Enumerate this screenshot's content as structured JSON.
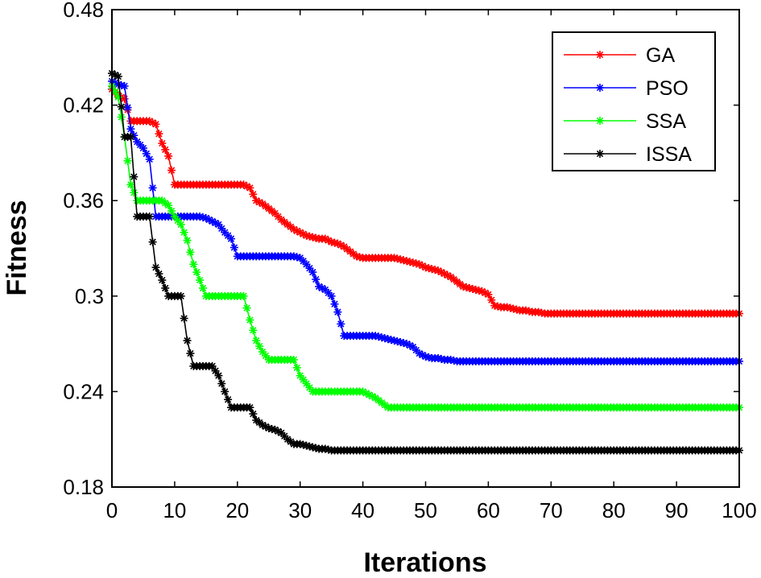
{
  "chart_data": {
    "type": "line",
    "title": "",
    "xlabel": "Iterations",
    "ylabel": "Fitness",
    "xlim": [
      0,
      100
    ],
    "ylim": [
      0.18,
      0.48
    ],
    "xticks": [
      0,
      10,
      20,
      30,
      40,
      50,
      60,
      70,
      80,
      90,
      100
    ],
    "yticks": [
      0.18,
      0.24,
      0.3,
      0.36,
      0.42,
      0.48
    ],
    "ytick_labels": [
      "0.18",
      "0.24",
      "0.3",
      "0.36",
      "0.42",
      "0.48"
    ],
    "grid": false,
    "legend_position": "top-right",
    "marker": "*",
    "series": [
      {
        "name": "GA",
        "color": "#ff0000",
        "points": [
          [
            0,
            0.43
          ],
          [
            1,
            0.426
          ],
          [
            2,
            0.424
          ],
          [
            3,
            0.41
          ],
          [
            4,
            0.41
          ],
          [
            5,
            0.41
          ],
          [
            6,
            0.41
          ],
          [
            7,
            0.408
          ],
          [
            8,
            0.396
          ],
          [
            9,
            0.388
          ],
          [
            10,
            0.37
          ],
          [
            11,
            0.37
          ],
          [
            12,
            0.37
          ],
          [
            13,
            0.37
          ],
          [
            14,
            0.37
          ],
          [
            15,
            0.37
          ],
          [
            16,
            0.37
          ],
          [
            17,
            0.37
          ],
          [
            18,
            0.37
          ],
          [
            19,
            0.37
          ],
          [
            20,
            0.37
          ],
          [
            21,
            0.37
          ],
          [
            22,
            0.368
          ],
          [
            23,
            0.36
          ],
          [
            24,
            0.358
          ],
          [
            25,
            0.355
          ],
          [
            26,
            0.352
          ],
          [
            27,
            0.348
          ],
          [
            28,
            0.345
          ],
          [
            29,
            0.342
          ],
          [
            30,
            0.34
          ],
          [
            31,
            0.338
          ],
          [
            32,
            0.337
          ],
          [
            33,
            0.336
          ],
          [
            34,
            0.336
          ],
          [
            35,
            0.334
          ],
          [
            36,
            0.333
          ],
          [
            37,
            0.331
          ],
          [
            38,
            0.328
          ],
          [
            39,
            0.325
          ],
          [
            40,
            0.324
          ],
          [
            41,
            0.324
          ],
          [
            42,
            0.324
          ],
          [
            43,
            0.324
          ],
          [
            44,
            0.324
          ],
          [
            45,
            0.324
          ],
          [
            46,
            0.323
          ],
          [
            47,
            0.322
          ],
          [
            48,
            0.321
          ],
          [
            49,
            0.32
          ],
          [
            50,
            0.318
          ],
          [
            51,
            0.317
          ],
          [
            52,
            0.316
          ],
          [
            53,
            0.314
          ],
          [
            54,
            0.312
          ],
          [
            55,
            0.309
          ],
          [
            56,
            0.306
          ],
          [
            57,
            0.305
          ],
          [
            58,
            0.304
          ],
          [
            59,
            0.303
          ],
          [
            60,
            0.301
          ],
          [
            61,
            0.294
          ],
          [
            62,
            0.293
          ],
          [
            63,
            0.293
          ],
          [
            64,
            0.292
          ],
          [
            65,
            0.291
          ],
          [
            66,
            0.291
          ],
          [
            67,
            0.29
          ],
          [
            68,
            0.29
          ],
          [
            69,
            0.289
          ],
          [
            70,
            0.289
          ],
          [
            75,
            0.289
          ],
          [
            80,
            0.289
          ],
          [
            85,
            0.289
          ],
          [
            90,
            0.289
          ],
          [
            95,
            0.289
          ],
          [
            100,
            0.289
          ]
        ]
      },
      {
        "name": "PSO",
        "color": "#0000ff",
        "points": [
          [
            0,
            0.435
          ],
          [
            1,
            0.433
          ],
          [
            2,
            0.432
          ],
          [
            3,
            0.405
          ],
          [
            4,
            0.397
          ],
          [
            5,
            0.393
          ],
          [
            6,
            0.386
          ],
          [
            7,
            0.35
          ],
          [
            8,
            0.35
          ],
          [
            9,
            0.35
          ],
          [
            10,
            0.35
          ],
          [
            11,
            0.35
          ],
          [
            12,
            0.35
          ],
          [
            13,
            0.35
          ],
          [
            14,
            0.35
          ],
          [
            15,
            0.349
          ],
          [
            16,
            0.347
          ],
          [
            17,
            0.345
          ],
          [
            18,
            0.34
          ],
          [
            19,
            0.336
          ],
          [
            20,
            0.325
          ],
          [
            21,
            0.325
          ],
          [
            22,
            0.325
          ],
          [
            23,
            0.325
          ],
          [
            24,
            0.325
          ],
          [
            25,
            0.325
          ],
          [
            26,
            0.325
          ],
          [
            27,
            0.325
          ],
          [
            28,
            0.325
          ],
          [
            29,
            0.325
          ],
          [
            30,
            0.324
          ],
          [
            31,
            0.32
          ],
          [
            32,
            0.315
          ],
          [
            33,
            0.306
          ],
          [
            34,
            0.304
          ],
          [
            35,
            0.3
          ],
          [
            36,
            0.29
          ],
          [
            37,
            0.275
          ],
          [
            38,
            0.275
          ],
          [
            39,
            0.275
          ],
          [
            40,
            0.275
          ],
          [
            41,
            0.275
          ],
          [
            42,
            0.275
          ],
          [
            43,
            0.274
          ],
          [
            44,
            0.273
          ],
          [
            45,
            0.272
          ],
          [
            46,
            0.271
          ],
          [
            47,
            0.27
          ],
          [
            48,
            0.268
          ],
          [
            49,
            0.264
          ],
          [
            50,
            0.262
          ],
          [
            51,
            0.261
          ],
          [
            52,
            0.261
          ],
          [
            53,
            0.26
          ],
          [
            54,
            0.26
          ],
          [
            55,
            0.259
          ],
          [
            60,
            0.259
          ],
          [
            65,
            0.259
          ],
          [
            70,
            0.259
          ],
          [
            75,
            0.259
          ],
          [
            80,
            0.259
          ],
          [
            85,
            0.259
          ],
          [
            90,
            0.259
          ],
          [
            95,
            0.259
          ],
          [
            100,
            0.259
          ]
        ]
      },
      {
        "name": "SSA",
        "color": "#00ff00",
        "points": [
          [
            0,
            0.432
          ],
          [
            1,
            0.425
          ],
          [
            2,
            0.4
          ],
          [
            3,
            0.37
          ],
          [
            4,
            0.36
          ],
          [
            5,
            0.36
          ],
          [
            6,
            0.36
          ],
          [
            7,
            0.36
          ],
          [
            8,
            0.36
          ],
          [
            9,
            0.357
          ],
          [
            10,
            0.35
          ],
          [
            11,
            0.345
          ],
          [
            12,
            0.335
          ],
          [
            13,
            0.32
          ],
          [
            14,
            0.31
          ],
          [
            15,
            0.3
          ],
          [
            16,
            0.3
          ],
          [
            17,
            0.3
          ],
          [
            18,
            0.3
          ],
          [
            19,
            0.3
          ],
          [
            20,
            0.3
          ],
          [
            21,
            0.3
          ],
          [
            22,
            0.285
          ],
          [
            23,
            0.272
          ],
          [
            24,
            0.265
          ],
          [
            25,
            0.26
          ],
          [
            26,
            0.26
          ],
          [
            27,
            0.26
          ],
          [
            28,
            0.26
          ],
          [
            29,
            0.26
          ],
          [
            30,
            0.25
          ],
          [
            31,
            0.245
          ],
          [
            32,
            0.24
          ],
          [
            33,
            0.24
          ],
          [
            34,
            0.24
          ],
          [
            35,
            0.24
          ],
          [
            36,
            0.24
          ],
          [
            37,
            0.24
          ],
          [
            38,
            0.24
          ],
          [
            39,
            0.24
          ],
          [
            40,
            0.24
          ],
          [
            41,
            0.238
          ],
          [
            42,
            0.236
          ],
          [
            43,
            0.233
          ],
          [
            44,
            0.23
          ],
          [
            45,
            0.23
          ],
          [
            50,
            0.23
          ],
          [
            55,
            0.23
          ],
          [
            60,
            0.23
          ],
          [
            65,
            0.23
          ],
          [
            70,
            0.23
          ],
          [
            75,
            0.23
          ],
          [
            80,
            0.23
          ],
          [
            85,
            0.23
          ],
          [
            90,
            0.23
          ],
          [
            95,
            0.23
          ],
          [
            100,
            0.23
          ]
        ]
      },
      {
        "name": "ISSA",
        "color": "#000000",
        "points": [
          [
            0,
            0.44
          ],
          [
            1,
            0.438
          ],
          [
            2,
            0.4
          ],
          [
            3,
            0.4
          ],
          [
            4,
            0.35
          ],
          [
            5,
            0.35
          ],
          [
            6,
            0.35
          ],
          [
            7,
            0.318
          ],
          [
            8,
            0.31
          ],
          [
            9,
            0.3
          ],
          [
            10,
            0.3
          ],
          [
            11,
            0.3
          ],
          [
            12,
            0.272
          ],
          [
            13,
            0.256
          ],
          [
            14,
            0.256
          ],
          [
            15,
            0.256
          ],
          [
            16,
            0.256
          ],
          [
            17,
            0.25
          ],
          [
            18,
            0.24
          ],
          [
            19,
            0.23
          ],
          [
            20,
            0.23
          ],
          [
            21,
            0.23
          ],
          [
            22,
            0.23
          ],
          [
            23,
            0.222
          ],
          [
            24,
            0.219
          ],
          [
            25,
            0.217
          ],
          [
            26,
            0.216
          ],
          [
            27,
            0.214
          ],
          [
            28,
            0.21
          ],
          [
            29,
            0.207
          ],
          [
            30,
            0.207
          ],
          [
            31,
            0.206
          ],
          [
            32,
            0.205
          ],
          [
            33,
            0.204
          ],
          [
            34,
            0.204
          ],
          [
            35,
            0.203
          ],
          [
            36,
            0.203
          ],
          [
            40,
            0.203
          ],
          [
            45,
            0.203
          ],
          [
            50,
            0.203
          ],
          [
            55,
            0.203
          ],
          [
            60,
            0.203
          ],
          [
            65,
            0.203
          ],
          [
            70,
            0.203
          ],
          [
            75,
            0.203
          ],
          [
            80,
            0.203
          ],
          [
            85,
            0.203
          ],
          [
            90,
            0.203
          ],
          [
            95,
            0.203
          ],
          [
            100,
            0.203
          ]
        ]
      }
    ]
  }
}
